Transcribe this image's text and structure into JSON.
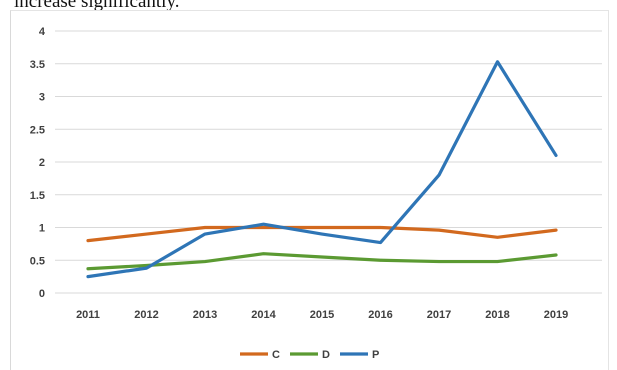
{
  "caption_text": "increase significantly.",
  "chart_data": {
    "type": "line",
    "title": "",
    "xlabel": "",
    "ylabel": "",
    "categories": [
      "2011",
      "2012",
      "2013",
      "2014",
      "2015",
      "2016",
      "2017",
      "2018",
      "2019"
    ],
    "ylim": [
      0,
      4
    ],
    "yticks": [
      0,
      0.5,
      1,
      1.5,
      2,
      2.5,
      3,
      3.5,
      4
    ],
    "ytick_labels": [
      "0",
      "0.5",
      "1",
      "1.5",
      "2",
      "2.5",
      "3",
      "3.5",
      "4"
    ],
    "grid": true,
    "legend_position": "bottom",
    "series": [
      {
        "name": "C",
        "color": "#d2691e",
        "values": [
          0.8,
          0.9,
          1.0,
          1.0,
          1.0,
          1.0,
          0.96,
          0.85,
          0.96
        ]
      },
      {
        "name": "D",
        "color": "#5b9a32",
        "values": [
          0.37,
          0.42,
          0.48,
          0.6,
          0.55,
          0.5,
          0.48,
          0.48,
          0.58
        ]
      },
      {
        "name": "P",
        "color": "#2e75b6",
        "values": [
          0.25,
          0.38,
          0.9,
          1.05,
          0.9,
          0.77,
          1.8,
          3.53,
          2.1
        ]
      }
    ]
  }
}
